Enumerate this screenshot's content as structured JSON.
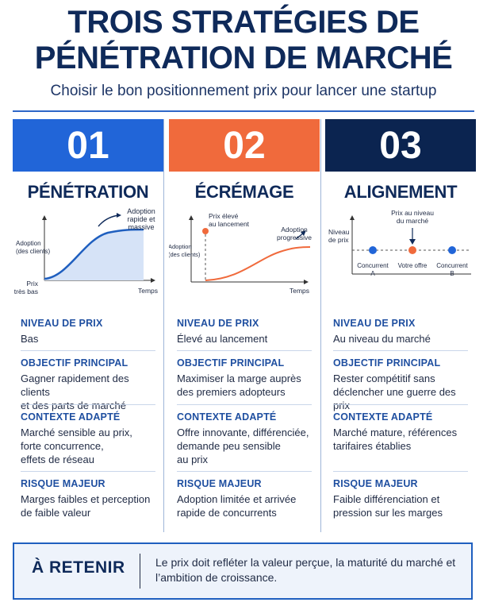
{
  "header": {
    "title_line1": "TROIS STRATÉGIES DE",
    "title_line2": "PÉNÉTRATION DE MARCHÉ",
    "subtitle": "Choisir le bon positionnement prix pour lancer une startup"
  },
  "colors": {
    "blue": "#2165d8",
    "orange": "#f06a3c",
    "navy": "#0b2450",
    "heading": "#1f4fa0"
  },
  "strategies": [
    {
      "number": "01",
      "name": "PÉNÉTRATION",
      "chart": {
        "y_label_1": "Adoption",
        "y_label_2": "(des clients)",
        "x_label": "Temps",
        "start_label_1": "Prix",
        "start_label_2": "très bas",
        "annot_1": "Adoption",
        "annot_2": "rapide et",
        "annot_3": "massive"
      },
      "price_heading": "NIVEAU DE PRIX",
      "price": "Bas",
      "goal_heading": "OBJECTIF PRINCIPAL",
      "goal_1": "Gagner rapidement des clients",
      "goal_2": "et des parts de marché",
      "context_heading": "CONTEXTE ADAPTÉ",
      "context_1": "Marché sensible au prix,",
      "context_2": "forte concurrence,",
      "context_3": "effets de réseau",
      "risk_heading": "RISQUE MAJEUR",
      "risk_1": "Marges faibles et perception",
      "risk_2": "de faible valeur"
    },
    {
      "number": "02",
      "name": "ÉCRÉMAGE",
      "chart": {
        "y_label_1": "Adoption",
        "y_label_2": "(des clients)",
        "x_label": "Temps",
        "start_label_1": "Prix élevé",
        "start_label_2": "au lancement",
        "annot_1": "Adoption",
        "annot_2": "progressive"
      },
      "price_heading": "NIVEAU DE PRIX",
      "price": "Élevé au lancement",
      "goal_heading": "OBJECTIF PRINCIPAL",
      "goal_1": "Maximiser la marge auprès",
      "goal_2": "des premiers adopteurs",
      "context_heading": "CONTEXTE ADAPTÉ",
      "context_1": "Offre innovante, différenciée,",
      "context_2": "demande peu sensible",
      "context_3": "au prix",
      "risk_heading": "RISQUE MAJEUR",
      "risk_1": "Adoption limitée et arrivée",
      "risk_2": "rapide de concurrents"
    },
    {
      "number": "03",
      "name": "ALIGNEMENT",
      "chart": {
        "y_label_1": "Niveau",
        "y_label_2": "de prix",
        "top_label_1": "Prix au niveau",
        "top_label_2": "du marché",
        "p1_1": "Concurrent",
        "p1_2": "A",
        "p2": "Votre offre",
        "p3_1": "Concurrent",
        "p3_2": "B"
      },
      "price_heading": "NIVEAU DE PRIX",
      "price": "Au niveau du marché",
      "goal_heading": "OBJECTIF PRINCIPAL",
      "goal_1": "Rester compétitif sans",
      "goal_2": "déclencher une guerre des prix",
      "context_heading": "CONTEXTE ADAPTÉ",
      "context_1": "Marché mature, références",
      "context_2": "tarifaires établies",
      "risk_heading": "RISQUE MAJEUR",
      "risk_1": "Faible différenciation et",
      "risk_2": "pression sur les marges"
    }
  ],
  "retain": {
    "label": "À RETENIR",
    "text": "Le prix doit refléter la valeur perçue, la maturité du marché et l’ambition de croissance."
  }
}
